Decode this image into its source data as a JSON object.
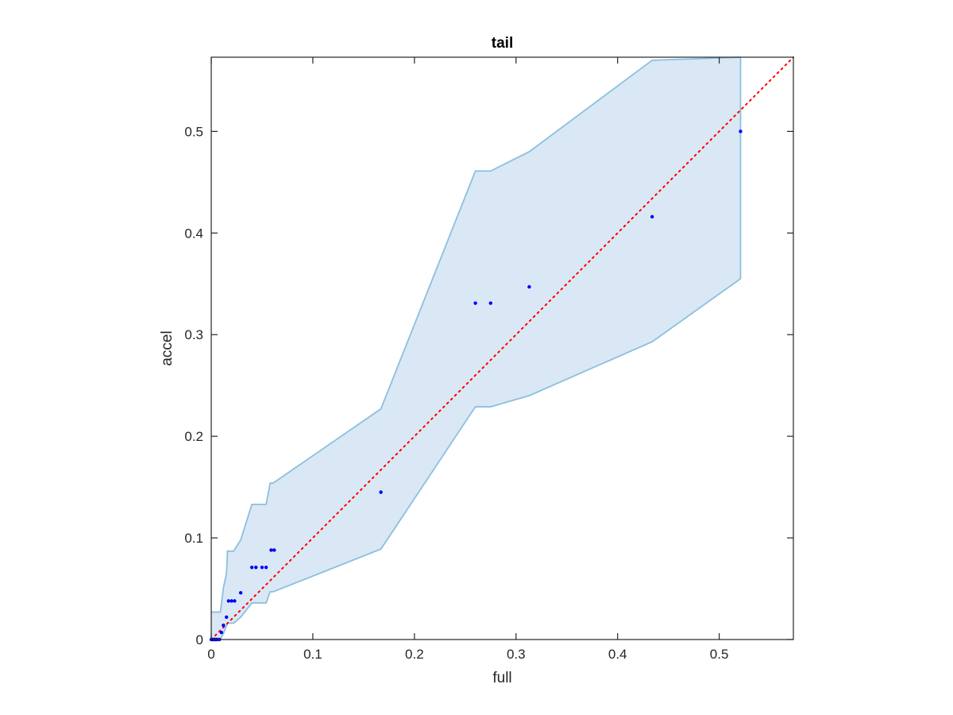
{
  "chart_data": {
    "type": "scatter",
    "title": "tail",
    "xlabel": "full",
    "ylabel": "accel",
    "xlim": [
      0,
      0.573
    ],
    "ylim": [
      0,
      0.573
    ],
    "xticks": [
      0,
      0.1,
      0.2,
      0.3,
      0.4,
      0.5
    ],
    "yticks": [
      0,
      0.1,
      0.2,
      0.3,
      0.4,
      0.5
    ],
    "xtick_labels": [
      "0",
      "0.1",
      "0.2",
      "0.3",
      "0.4",
      "0.5"
    ],
    "ytick_labels": [
      "0",
      "0.1",
      "0.2",
      "0.3",
      "0.4",
      "0.5"
    ],
    "grid": false,
    "colors": {
      "points": "#0000ff",
      "band_fill": "#d9e8f4",
      "band_edge": "#8cbfe0",
      "reference_line": "#ff0000",
      "axes": "#262626"
    },
    "series": [
      {
        "type": "scatter",
        "x": [
          0.0,
          0.001,
          0.002,
          0.003,
          0.004,
          0.005,
          0.006,
          0.008,
          0.01,
          0.012,
          0.015,
          0.017,
          0.02,
          0.023,
          0.029,
          0.04,
          0.044,
          0.05,
          0.054,
          0.059,
          0.062,
          0.167,
          0.26,
          0.275,
          0.313,
          0.434,
          0.521
        ],
        "y": [
          0.0,
          0.0,
          0.0,
          0.0,
          0.0,
          0.0,
          0.0,
          0.0,
          0.007,
          0.014,
          0.022,
          0.038,
          0.038,
          0.038,
          0.046,
          0.071,
          0.071,
          0.071,
          0.071,
          0.088,
          0.088,
          0.145,
          0.331,
          0.331,
          0.347,
          0.416,
          0.5
        ]
      },
      {
        "type": "area-band",
        "upper": {
          "x": [
            0.0,
            0.009,
            0.012,
            0.015,
            0.016,
            0.022,
            0.029,
            0.04,
            0.054,
            0.058,
            0.061,
            0.167,
            0.26,
            0.275,
            0.313,
            0.434,
            0.521
          ],
          "y": [
            0.027,
            0.027,
            0.051,
            0.065,
            0.087,
            0.087,
            0.098,
            0.133,
            0.133,
            0.154,
            0.154,
            0.227,
            0.461,
            0.461,
            0.48,
            0.57,
            0.573
          ]
        },
        "lower": {
          "x": [
            0.0,
            0.009,
            0.012,
            0.016,
            0.022,
            0.029,
            0.04,
            0.054,
            0.058,
            0.061,
            0.167,
            0.26,
            0.275,
            0.313,
            0.434,
            0.521
          ],
          "y": [
            0.0,
            0.0,
            0.006,
            0.016,
            0.016,
            0.022,
            0.036,
            0.036,
            0.047,
            0.047,
            0.089,
            0.229,
            0.229,
            0.24,
            0.293,
            0.355
          ]
        }
      },
      {
        "type": "reference-line",
        "x": [
          0,
          0.573
        ],
        "y": [
          0,
          0.573
        ]
      }
    ]
  }
}
